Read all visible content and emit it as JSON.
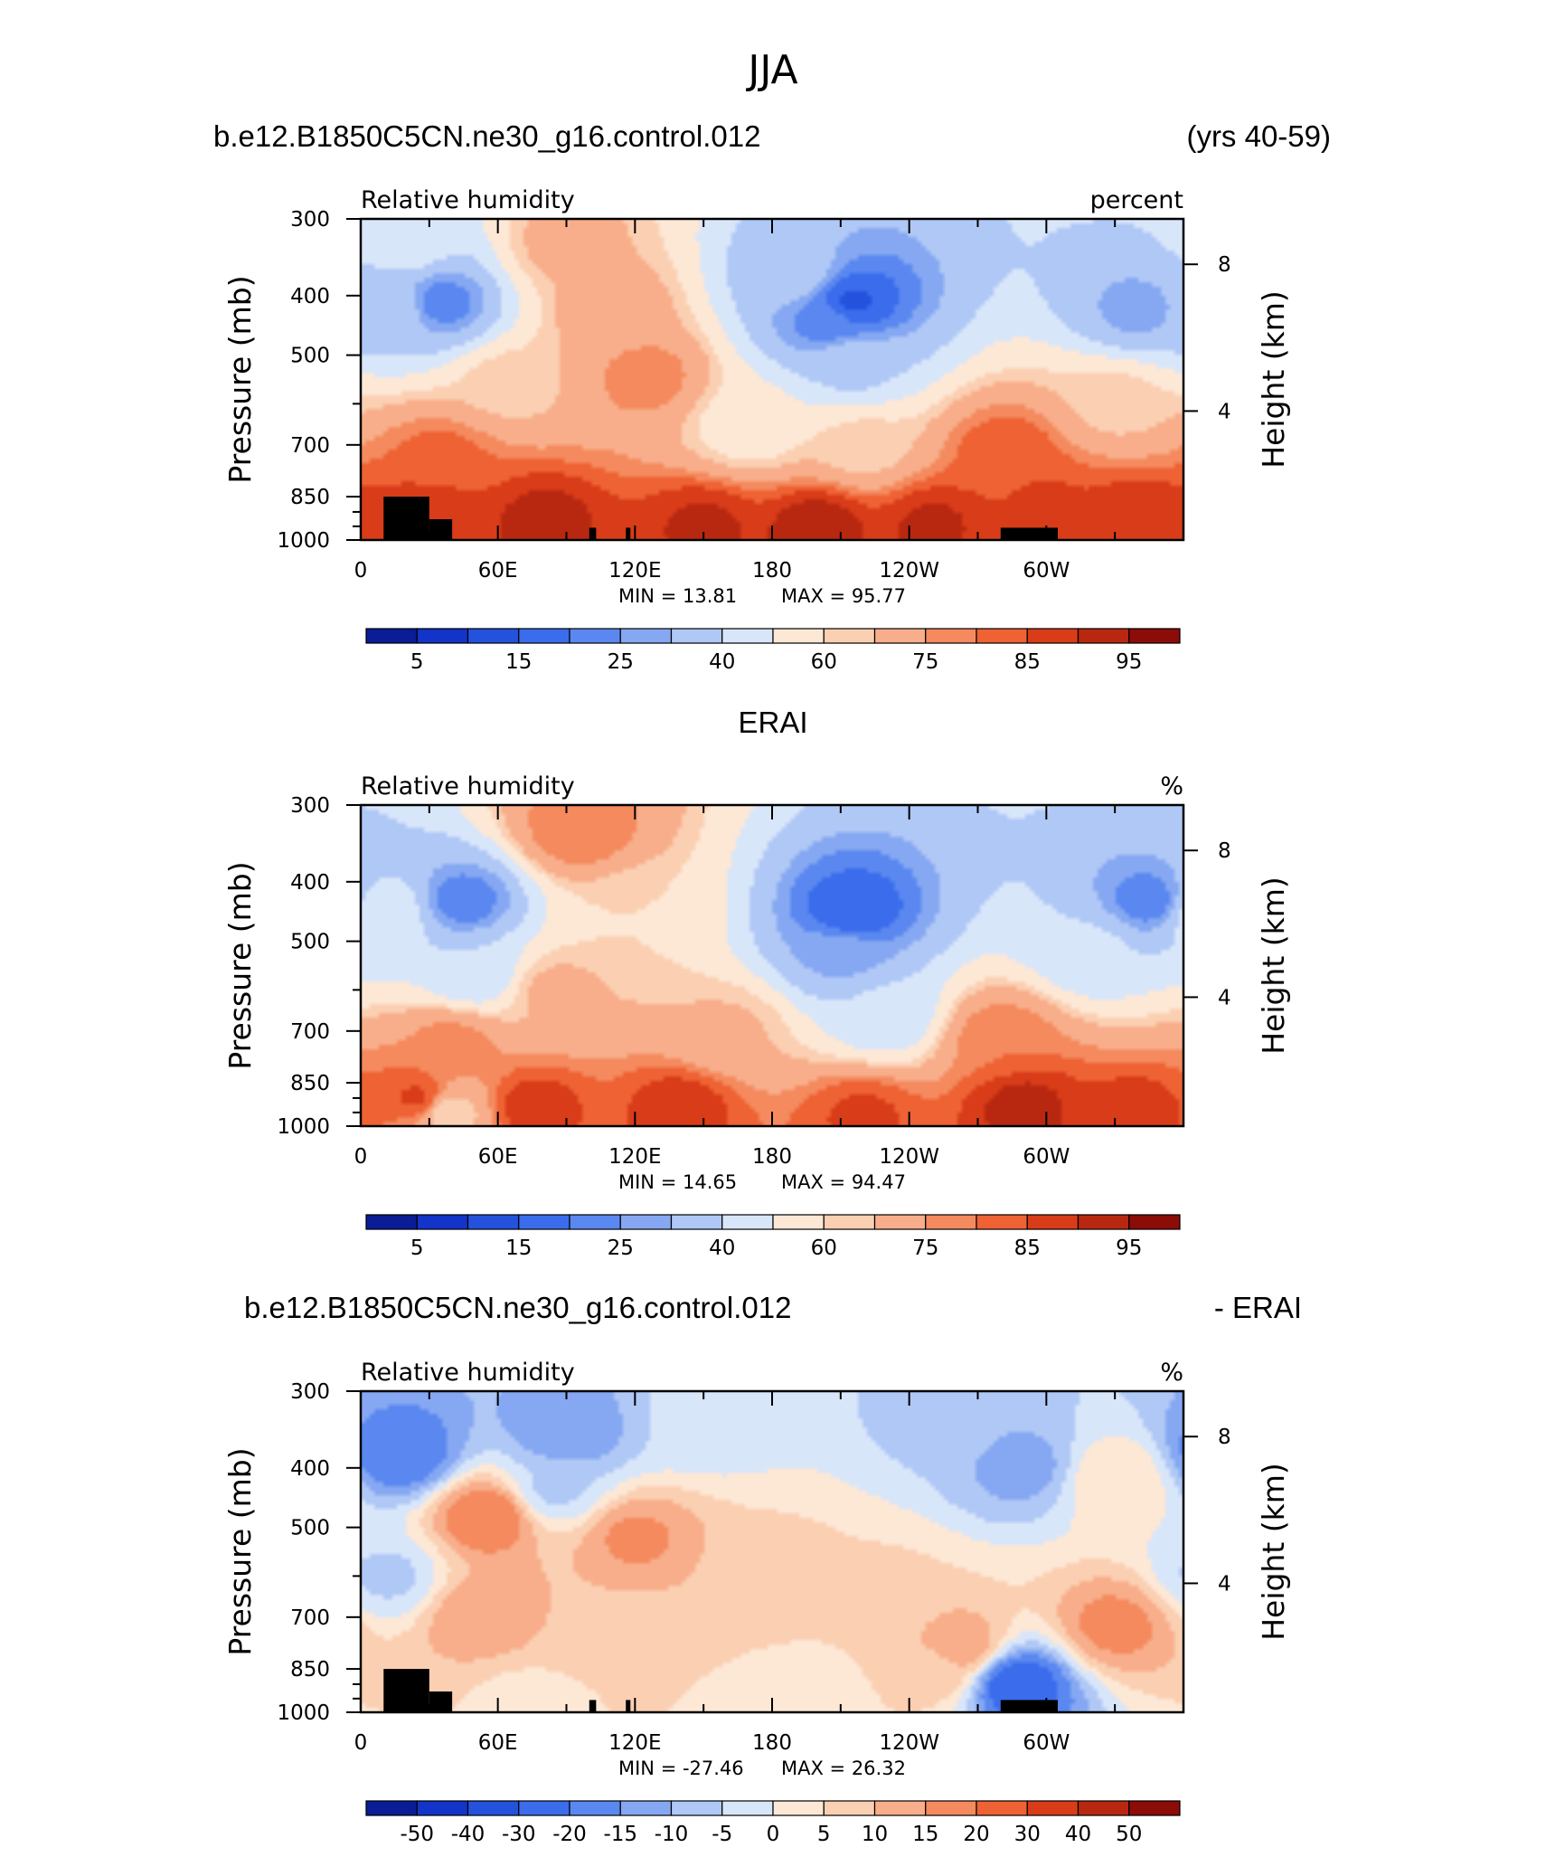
{
  "figure": {
    "title": "JJA",
    "header_left": "b.e12.B1850C5CN.ne30_g16.control.012",
    "header_right": "(yrs 40-59)",
    "diff_header_left": "b.e12.B1850C5CN.ne30_g16.control.012",
    "diff_header_right": "- ERAI",
    "obs_header": "ERAI"
  },
  "chart_data": [
    {
      "type": "heatmap",
      "title": "Relative humidity",
      "units": "percent",
      "ylabel": "Pressure (mb)",
      "ylabel_right": "Height (km)",
      "x_ticks": [
        "0",
        "60E",
        "120E",
        "180",
        "120W",
        "60W"
      ],
      "y_ticks": [
        "300",
        "400",
        "500",
        "700",
        "850",
        "1000"
      ],
      "y_ticks_right": [
        "8",
        "4"
      ],
      "x_range": [
        0,
        360
      ],
      "y_range": [
        1000,
        300
      ],
      "y_scale": "log",
      "min_text": "MIN =   13.81",
      "max_text": "MAX =   95.77",
      "min": 13.81,
      "max": 95.77,
      "colorbar_labels": [
        "5",
        "15",
        "25",
        "40",
        "60",
        "75",
        "85",
        "95"
      ],
      "colorbar_colors": [
        "#0a1c96",
        "#1334c8",
        "#2452dc",
        "#3a6cec",
        "#5a88f0",
        "#86a8f2",
        "#b0c8f6",
        "#d8e6fa",
        "#fde8d6",
        "#fbcfb2",
        "#f8ae8a",
        "#f48a5e",
        "#ee6234",
        "#d83c18",
        "#b82810",
        "#8c0c08"
      ],
      "topography": [
        [
          10,
          30,
          50,
          3
        ],
        [
          30,
          40,
          50,
          2
        ],
        [
          100,
          103,
          50,
          1
        ],
        [
          116,
          118,
          50,
          1
        ],
        [
          280,
          305,
          50,
          1
        ]
      ],
      "features": [
        {
          "x": 35,
          "y": 410,
          "v": 22
        },
        {
          "x": 15,
          "y": 420,
          "v": 35
        },
        {
          "x": 340,
          "y": 420,
          "v": 28
        },
        {
          "x": 215,
          "y": 410,
          "v": 14
        },
        {
          "x": 205,
          "y": 440,
          "v": 22
        },
        {
          "x": 215,
          "y": 520,
          "v": 38
        },
        {
          "x": 190,
          "y": 370,
          "v": 35
        },
        {
          "x": 170,
          "y": 650,
          "v": 55
        },
        {
          "x": 220,
          "y": 700,
          "v": 62
        },
        {
          "x": 125,
          "y": 540,
          "v": 78
        },
        {
          "x": 110,
          "y": 420,
          "v": 70
        },
        {
          "x": 65,
          "y": 560,
          "v": 63
        },
        {
          "x": 35,
          "y": 740,
          "v": 82
        },
        {
          "x": 30,
          "y": 900,
          "v": 89
        },
        {
          "x": 80,
          "y": 930,
          "v": 92
        },
        {
          "x": 150,
          "y": 950,
          "v": 91
        },
        {
          "x": 200,
          "y": 950,
          "v": 93
        },
        {
          "x": 250,
          "y": 945,
          "v": 91
        },
        {
          "x": 300,
          "y": 880,
          "v": 86
        },
        {
          "x": 340,
          "y": 930,
          "v": 90
        },
        {
          "x": 330,
          "y": 600,
          "v": 63
        },
        {
          "x": 283,
          "y": 720,
          "v": 84
        },
        {
          "x": 20,
          "y": 330,
          "v": 45
        },
        {
          "x": 90,
          "y": 330,
          "v": 68
        }
      ],
      "background_value": 60
    },
    {
      "type": "heatmap",
      "title": "Relative humidity",
      "units": "%",
      "ylabel": "Pressure (mb)",
      "ylabel_right": "Height (km)",
      "x_ticks": [
        "0",
        "60E",
        "120E",
        "180",
        "120W",
        "60W"
      ],
      "y_ticks": [
        "300",
        "400",
        "500",
        "700",
        "850",
        "1000"
      ],
      "y_ticks_right": [
        "8",
        "4"
      ],
      "x_range": [
        0,
        360
      ],
      "y_range": [
        1000,
        300
      ],
      "y_scale": "log",
      "min_text": "MIN =   14.65",
      "max_text": "MAX =   94.47",
      "min": 14.65,
      "max": 94.47,
      "colorbar_labels": [
        "5",
        "15",
        "25",
        "40",
        "60",
        "75",
        "85",
        "95"
      ],
      "colorbar_colors": [
        "#0a1c96",
        "#1334c8",
        "#2452dc",
        "#3a6cec",
        "#5a88f0",
        "#86a8f2",
        "#b0c8f6",
        "#d8e6fa",
        "#fde8d6",
        "#fbcfb2",
        "#f8ae8a",
        "#f48a5e",
        "#ee6234",
        "#d83c18",
        "#b82810",
        "#8c0c08"
      ],
      "topography": [],
      "features": [
        {
          "x": 45,
          "y": 430,
          "v": 22
        },
        {
          "x": 50,
          "y": 560,
          "v": 40
        },
        {
          "x": 215,
          "y": 450,
          "v": 15
        },
        {
          "x": 210,
          "y": 520,
          "v": 28
        },
        {
          "x": 230,
          "y": 660,
          "v": 42
        },
        {
          "x": 345,
          "y": 430,
          "v": 22
        },
        {
          "x": 320,
          "y": 520,
          "v": 42
        },
        {
          "x": 10,
          "y": 450,
          "v": 48
        },
        {
          "x": 95,
          "y": 330,
          "v": 80
        },
        {
          "x": 120,
          "y": 450,
          "v": 60
        },
        {
          "x": 85,
          "y": 600,
          "v": 67
        },
        {
          "x": 160,
          "y": 700,
          "v": 66
        },
        {
          "x": 40,
          "y": 740,
          "v": 78
        },
        {
          "x": 25,
          "y": 900,
          "v": 86
        },
        {
          "x": 75,
          "y": 930,
          "v": 88
        },
        {
          "x": 140,
          "y": 930,
          "v": 88
        },
        {
          "x": 220,
          "y": 960,
          "v": 86
        },
        {
          "x": 290,
          "y": 930,
          "v": 92
        },
        {
          "x": 340,
          "y": 950,
          "v": 88
        },
        {
          "x": 38,
          "y": 950,
          "v": 60
        },
        {
          "x": 280,
          "y": 720,
          "v": 80
        }
      ],
      "background_value": 62
    },
    {
      "type": "heatmap",
      "title": "Relative humidity",
      "units": "%",
      "ylabel": "Pressure (mb)",
      "ylabel_right": "Height (km)",
      "x_ticks": [
        "0",
        "60E",
        "120E",
        "180",
        "120W",
        "60W"
      ],
      "y_ticks": [
        "300",
        "400",
        "500",
        "700",
        "850",
        "1000"
      ],
      "y_ticks_right": [
        "8",
        "4"
      ],
      "x_range": [
        0,
        360
      ],
      "y_range": [
        1000,
        300
      ],
      "y_scale": "log",
      "min_text": "MIN =  -27.46",
      "max_text": "MAX =   26.32",
      "min": -27.46,
      "max": 26.32,
      "colorbar_labels": [
        "-50",
        "-40",
        "-30",
        "-20",
        "-15",
        "-10",
        "-5",
        "0",
        "5",
        "10",
        "15",
        "20",
        "30",
        "40",
        "50"
      ],
      "colorbar_colors": [
        "#0a1c96",
        "#1334c8",
        "#2452dc",
        "#3a6cec",
        "#5a88f0",
        "#86a8f2",
        "#b0c8f6",
        "#d8e6fa",
        "#fde8d6",
        "#fbcfb2",
        "#f8ae8a",
        "#f48a5e",
        "#ee6234",
        "#d83c18",
        "#b82810",
        "#8c0c08"
      ],
      "topography": [
        [
          10,
          30,
          50,
          3
        ],
        [
          30,
          40,
          50,
          2
        ],
        [
          100,
          103,
          50,
          1
        ],
        [
          116,
          118,
          50,
          1
        ],
        [
          280,
          305,
          50,
          1
        ]
      ],
      "features": [
        {
          "x": 18,
          "y": 380,
          "v": -20
        },
        {
          "x": 12,
          "y": 600,
          "v": -6
        },
        {
          "x": 55,
          "y": 480,
          "v": 20
        },
        {
          "x": 53,
          "y": 700,
          "v": 15
        },
        {
          "x": 90,
          "y": 350,
          "v": -15
        },
        {
          "x": 85,
          "y": 430,
          "v": -6
        },
        {
          "x": 120,
          "y": 520,
          "v": 16
        },
        {
          "x": 110,
          "y": 800,
          "v": 5
        },
        {
          "x": 180,
          "y": 600,
          "v": 7
        },
        {
          "x": 230,
          "y": 640,
          "v": 6
        },
        {
          "x": 262,
          "y": 780,
          "v": 14
        },
        {
          "x": 250,
          "y": 850,
          "v": 8
        },
        {
          "x": 290,
          "y": 400,
          "v": -12
        },
        {
          "x": 287,
          "y": 900,
          "v": -25
        },
        {
          "x": 250,
          "y": 330,
          "v": -6
        },
        {
          "x": 330,
          "y": 720,
          "v": 17
        },
        {
          "x": 330,
          "y": 420,
          "v": 5
        },
        {
          "x": 200,
          "y": 950,
          "v": 3
        },
        {
          "x": 150,
          "y": 330,
          "v": -4
        },
        {
          "x": 70,
          "y": 950,
          "v": 4
        }
      ],
      "background_value": 2
    }
  ]
}
